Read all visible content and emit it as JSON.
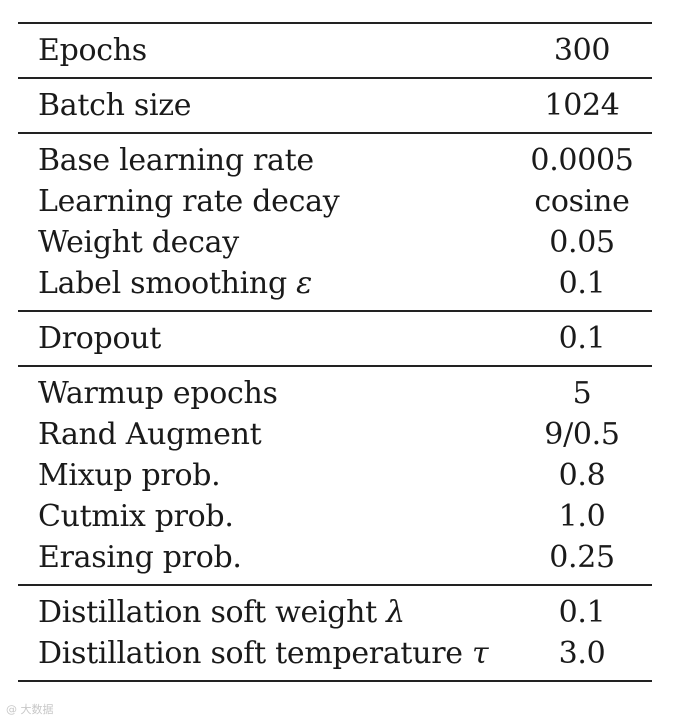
{
  "table": {
    "groups": [
      [
        {
          "label": "Epochs",
          "symbol": "",
          "value": "300"
        }
      ],
      [
        {
          "label": "Batch size",
          "symbol": "",
          "value": "1024"
        }
      ],
      [
        {
          "label": "Base learning rate",
          "symbol": "",
          "value": "0.0005"
        },
        {
          "label": "Learning rate decay",
          "symbol": "",
          "value": "cosine"
        },
        {
          "label": "Weight decay",
          "symbol": "",
          "value": "0.05"
        },
        {
          "label": "Label smoothing",
          "symbol": "ε",
          "value": "0.1"
        }
      ],
      [
        {
          "label": "Dropout",
          "symbol": "",
          "value": "0.1"
        }
      ],
      [
        {
          "label": "Warmup epochs",
          "symbol": "",
          "value": "5"
        },
        {
          "label": "Rand Augment",
          "symbol": "",
          "value": "9/0.5"
        },
        {
          "label": "Mixup prob.",
          "symbol": "",
          "value": "0.8"
        },
        {
          "label": "Cutmix prob.",
          "symbol": "",
          "value": "1.0"
        },
        {
          "label": "Erasing prob.",
          "symbol": "",
          "value": "0.25"
        }
      ],
      [
        {
          "label": "Distillation soft weight",
          "symbol": "λ",
          "value": "0.1"
        },
        {
          "label": "Distillation soft temperature",
          "symbol": "τ",
          "value": "3.0"
        }
      ]
    ]
  },
  "watermark": "@ 大数据"
}
